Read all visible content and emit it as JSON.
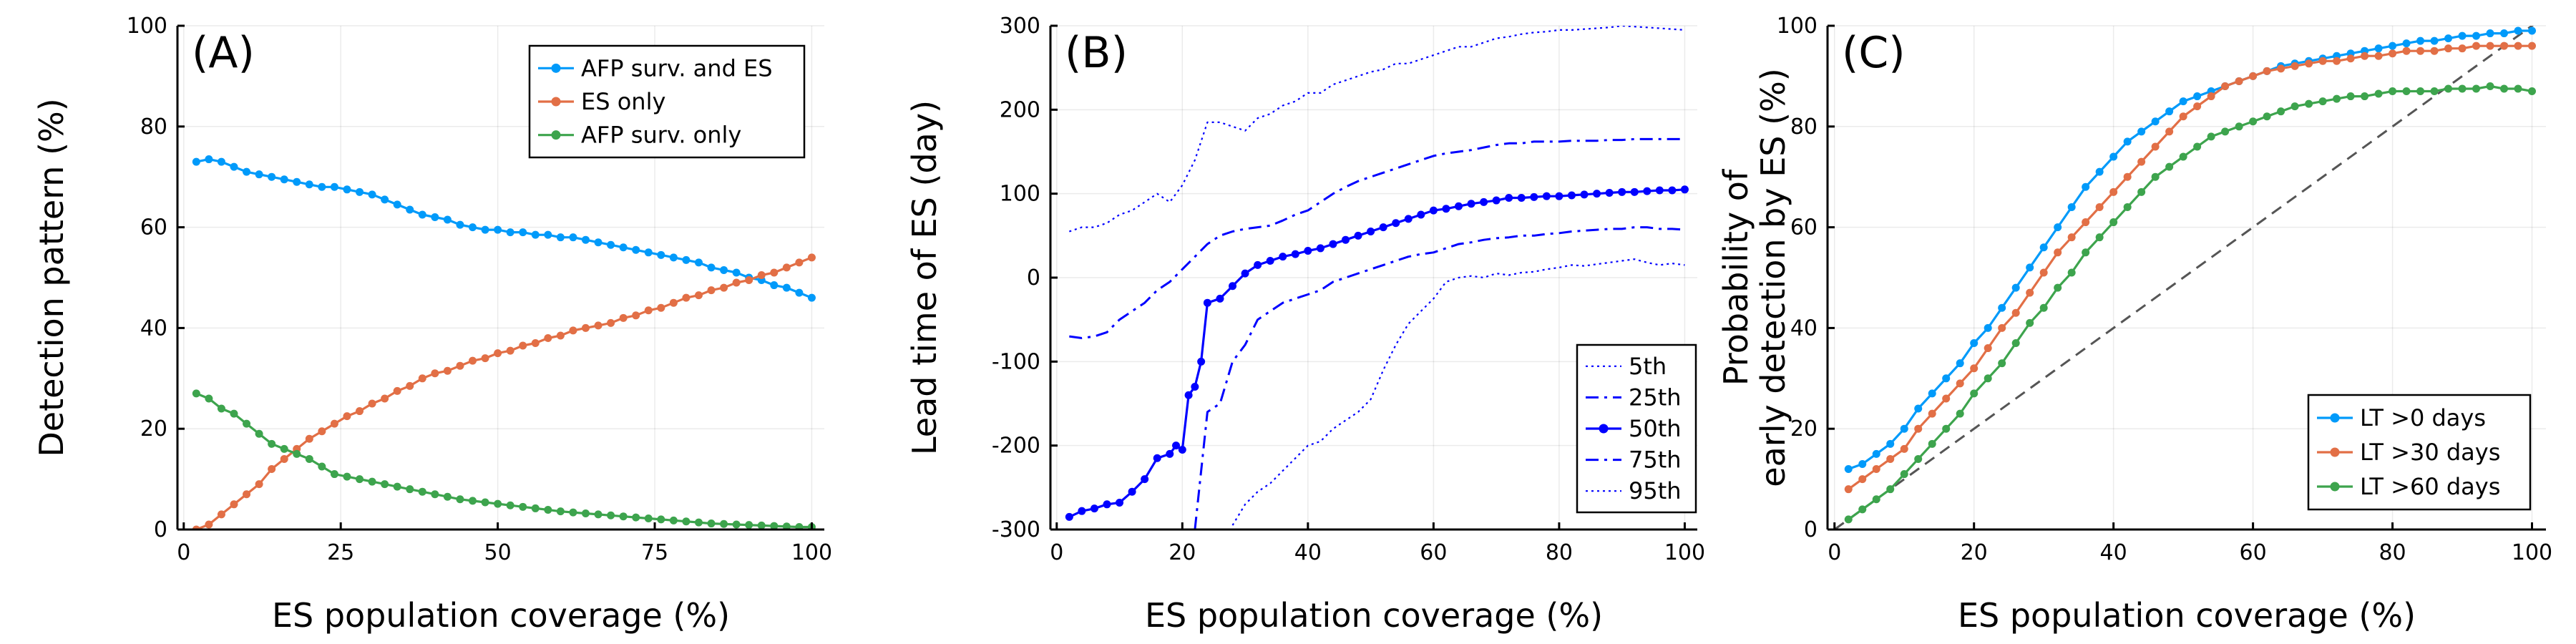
{
  "colors": {
    "blue": "#009AFA",
    "orange": "#E26F46",
    "green": "#3DA44D",
    "navy": "#0000FF",
    "diag": "#555555"
  },
  "chart_data": [
    {
      "panel_label": "(A)",
      "type": "line",
      "xlabel": "ES population coverage (%)",
      "ylabel": "Detection pattern (%)",
      "xlim": [
        -1,
        102
      ],
      "ylim": [
        0,
        100
      ],
      "xticks": [
        0,
        25,
        50,
        75,
        100
      ],
      "yticks": [
        0,
        20,
        40,
        60,
        80,
        100
      ],
      "grid": true,
      "legend_position": "top-right",
      "x": [
        2,
        4,
        6,
        8,
        10,
        12,
        14,
        16,
        18,
        20,
        22,
        24,
        26,
        28,
        30,
        32,
        34,
        36,
        38,
        40,
        42,
        44,
        46,
        48,
        50,
        52,
        54,
        56,
        58,
        60,
        62,
        64,
        66,
        68,
        70,
        72,
        74,
        76,
        78,
        80,
        82,
        84,
        86,
        88,
        90,
        92,
        94,
        96,
        98,
        100
      ],
      "series": [
        {
          "name": "AFP surv. and ES",
          "color": "#009AFA",
          "values": [
            73,
            73.5,
            73,
            72,
            71,
            70.5,
            70,
            69.5,
            69,
            68.5,
            68,
            68,
            67.5,
            67,
            66.5,
            65.5,
            64.5,
            63.5,
            62.5,
            62,
            61.5,
            60.5,
            60,
            59.5,
            59.5,
            59,
            59,
            58.5,
            58.5,
            58,
            58,
            57.5,
            57,
            56.5,
            56,
            55.5,
            55,
            54.5,
            54,
            53.5,
            53,
            52,
            51.5,
            51,
            50,
            49.5,
            48.5,
            48,
            47,
            46
          ]
        },
        {
          "name": "ES only",
          "color": "#E26F46",
          "values": [
            0,
            1,
            3,
            5,
            7,
            9,
            12,
            14,
            16,
            18,
            19.5,
            21,
            22.5,
            23.5,
            25,
            26,
            27.5,
            28.5,
            30,
            31,
            31.5,
            32.5,
            33.5,
            34,
            35,
            35.5,
            36.5,
            37,
            38,
            38.5,
            39.5,
            40,
            40.5,
            41,
            42,
            42.5,
            43.5,
            44,
            45,
            46,
            46.5,
            47.5,
            48,
            49,
            49.5,
            50.5,
            51,
            52,
            53,
            54
          ]
        },
        {
          "name": "AFP surv. only",
          "color": "#3DA44D",
          "values": [
            27,
            26,
            24,
            23,
            21,
            19,
            17,
            16,
            15,
            14,
            12.5,
            11,
            10.5,
            10,
            9.5,
            9,
            8.5,
            8,
            7.5,
            7,
            6.5,
            6,
            5.7,
            5.4,
            5.1,
            4.8,
            4.5,
            4.2,
            3.9,
            3.6,
            3.4,
            3.2,
            3,
            2.8,
            2.6,
            2.4,
            2.2,
            2,
            1.8,
            1.6,
            1.4,
            1.2,
            1.1,
            1,
            0.9,
            0.8,
            0.7,
            0.6,
            0.5,
            0.5
          ]
        }
      ]
    },
    {
      "panel_label": "(B)",
      "type": "line",
      "xlabel": "ES population coverage (%)",
      "ylabel": "Lead time of ES (day)",
      "xlim": [
        -1,
        102
      ],
      "ylim": [
        -300,
        300
      ],
      "xticks": [
        0,
        20,
        40,
        60,
        80,
        100
      ],
      "yticks": [
        -300,
        -200,
        -100,
        0,
        100,
        200,
        300
      ],
      "grid": true,
      "legend_position": "bottom-right",
      "series": [
        {
          "name": "5th",
          "color": "#0000FF",
          "style": "dot-fine",
          "x": [
            28,
            30,
            32,
            34,
            36,
            38,
            40,
            42,
            44,
            46,
            48,
            50,
            52,
            54,
            56,
            58,
            60,
            62,
            64,
            66,
            68,
            70,
            72,
            74,
            76,
            78,
            80,
            82,
            84,
            86,
            88,
            90,
            92,
            94,
            96,
            98,
            100
          ],
          "values": [
            -295,
            -270,
            -255,
            -245,
            -230,
            -215,
            -200,
            -195,
            -180,
            -170,
            -160,
            -145,
            -110,
            -80,
            -55,
            -40,
            -25,
            -5,
            0,
            2,
            0,
            5,
            3,
            6,
            7,
            10,
            12,
            15,
            14,
            16,
            18,
            20,
            22,
            18,
            15,
            17,
            15
          ]
        },
        {
          "name": "25th",
          "color": "#0000FF",
          "style": "dashdot",
          "x": [
            22,
            24,
            26,
            28,
            30,
            32,
            34,
            36,
            38,
            40,
            42,
            44,
            46,
            48,
            50,
            52,
            54,
            56,
            58,
            60,
            62,
            64,
            66,
            68,
            70,
            72,
            74,
            76,
            78,
            80,
            82,
            84,
            86,
            88,
            90,
            92,
            94,
            96,
            98,
            100
          ],
          "values": [
            -300,
            -160,
            -150,
            -100,
            -80,
            -50,
            -40,
            -30,
            -25,
            -20,
            -15,
            -5,
            0,
            5,
            10,
            15,
            20,
            25,
            28,
            30,
            35,
            40,
            42,
            45,
            47,
            48,
            50,
            50,
            52,
            53,
            55,
            56,
            57,
            58,
            58,
            60,
            60,
            58,
            58,
            57
          ]
        },
        {
          "name": "50th",
          "color": "#0000FF",
          "style": "solid-marker",
          "x": [
            2,
            4,
            6,
            8,
            10,
            12,
            14,
            16,
            18,
            19,
            20,
            21,
            22,
            23,
            24,
            26,
            28,
            30,
            32,
            34,
            36,
            38,
            40,
            42,
            44,
            46,
            48,
            50,
            52,
            54,
            56,
            58,
            60,
            62,
            64,
            66,
            68,
            70,
            72,
            74,
            76,
            78,
            80,
            82,
            84,
            86,
            88,
            90,
            92,
            94,
            96,
            98,
            100
          ],
          "values": [
            -285,
            -278,
            -275,
            -270,
            -268,
            -255,
            -240,
            -215,
            -210,
            -200,
            -205,
            -140,
            -130,
            -100,
            -30,
            -25,
            -10,
            5,
            15,
            20,
            25,
            28,
            32,
            35,
            40,
            45,
            50,
            55,
            60,
            65,
            70,
            75,
            80,
            82,
            85,
            88,
            90,
            92,
            95,
            95,
            96,
            97,
            97,
            98,
            99,
            100,
            101,
            102,
            102,
            103,
            104,
            104,
            105
          ]
        },
        {
          "name": "75th",
          "color": "#0000FF",
          "style": "dashdot",
          "x": [
            2,
            4,
            6,
            8,
            10,
            12,
            14,
            16,
            18,
            20,
            22,
            24,
            26,
            28,
            30,
            32,
            34,
            36,
            38,
            40,
            42,
            44,
            46,
            48,
            50,
            52,
            54,
            56,
            58,
            60,
            62,
            64,
            66,
            68,
            70,
            72,
            74,
            76,
            78,
            80,
            82,
            84,
            86,
            88,
            90,
            92,
            94,
            96,
            98,
            100
          ],
          "values": [
            -70,
            -72,
            -70,
            -65,
            -50,
            -40,
            -30,
            -15,
            -5,
            10,
            25,
            40,
            50,
            55,
            58,
            60,
            62,
            68,
            75,
            80,
            90,
            100,
            108,
            115,
            120,
            125,
            130,
            135,
            140,
            145,
            148,
            150,
            152,
            155,
            158,
            160,
            160,
            162,
            162,
            162,
            163,
            163,
            163,
            164,
            164,
            165,
            165,
            165,
            165,
            165
          ]
        },
        {
          "name": "95th",
          "color": "#0000FF",
          "style": "dot-fine",
          "x": [
            2,
            4,
            6,
            8,
            10,
            12,
            14,
            16,
            18,
            20,
            22,
            24,
            26,
            28,
            30,
            32,
            34,
            36,
            38,
            40,
            42,
            44,
            46,
            48,
            50,
            52,
            54,
            56,
            58,
            60,
            62,
            64,
            66,
            68,
            70,
            72,
            74,
            76,
            78,
            80,
            82,
            84,
            86,
            88,
            90,
            92,
            94,
            96,
            98,
            100
          ],
          "values": [
            55,
            60,
            60,
            65,
            75,
            80,
            90,
            100,
            90,
            110,
            140,
            185,
            185,
            180,
            175,
            190,
            195,
            205,
            210,
            220,
            220,
            230,
            235,
            240,
            245,
            248,
            255,
            255,
            260,
            265,
            270,
            275,
            275,
            280,
            285,
            287,
            290,
            292,
            293,
            295,
            295,
            296,
            297,
            298,
            300,
            299,
            298,
            297,
            296,
            295
          ]
        }
      ]
    },
    {
      "panel_label": "(C)",
      "type": "line",
      "xlabel": "ES population coverage (%)",
      "ylabel_lines": [
        "Probability of",
        "early detection by ES (%)"
      ],
      "xlim": [
        -1,
        102
      ],
      "ylim": [
        0,
        100
      ],
      "xticks": [
        0,
        20,
        40,
        60,
        80,
        100
      ],
      "yticks": [
        0,
        20,
        40,
        60,
        80,
        100
      ],
      "grid": true,
      "legend_position": "bottom-right",
      "reference_line": {
        "x": [
          0,
          102
        ],
        "y": [
          0,
          102
        ]
      },
      "x": [
        2,
        4,
        6,
        8,
        10,
        12,
        14,
        16,
        18,
        20,
        22,
        24,
        26,
        28,
        30,
        32,
        34,
        36,
        38,
        40,
        42,
        44,
        46,
        48,
        50,
        52,
        54,
        56,
        58,
        60,
        62,
        64,
        66,
        68,
        70,
        72,
        74,
        76,
        78,
        80,
        82,
        84,
        86,
        88,
        90,
        92,
        94,
        96,
        98,
        100
      ],
      "series": [
        {
          "name": "LT >0 days",
          "color": "#009AFA",
          "values": [
            12,
            13,
            15,
            17,
            20,
            24,
            27,
            30,
            33,
            37,
            40,
            44,
            48,
            52,
            56,
            60,
            64,
            68,
            71,
            74,
            77,
            79,
            81,
            83,
            85,
            86,
            87,
            88,
            89,
            90,
            91,
            92,
            92.5,
            93,
            93.5,
            94,
            94.5,
            95,
            95.5,
            96,
            96.5,
            97,
            97,
            97.5,
            98,
            98,
            98.5,
            98.5,
            99,
            99
          ]
        },
        {
          "name": "LT >30 days",
          "color": "#E26F46",
          "values": [
            8,
            10,
            12,
            14,
            16,
            20,
            23,
            26,
            29,
            32,
            36,
            40,
            43,
            47,
            51,
            55,
            58,
            61,
            64,
            67,
            70,
            73,
            76,
            79,
            82,
            84,
            86,
            88,
            89,
            90,
            91,
            91.5,
            92,
            92.5,
            93,
            93,
            93.5,
            94,
            94,
            94.5,
            95,
            95,
            95,
            95.5,
            95.5,
            96,
            96,
            96,
            96,
            96
          ]
        },
        {
          "name": "LT >60 days",
          "color": "#3DA44D",
          "values": [
            2,
            4,
            6,
            8,
            11,
            14,
            17,
            20,
            23,
            27,
            30,
            33,
            37,
            41,
            44,
            48,
            51,
            55,
            58,
            61,
            64,
            67,
            70,
            72,
            74,
            76,
            78,
            79,
            80,
            81,
            82,
            83,
            84,
            84.5,
            85,
            85.5,
            86,
            86,
            86.5,
            87,
            87,
            87,
            87,
            87.5,
            87.5,
            87.5,
            88,
            87.5,
            87.5,
            87
          ]
        }
      ]
    }
  ]
}
